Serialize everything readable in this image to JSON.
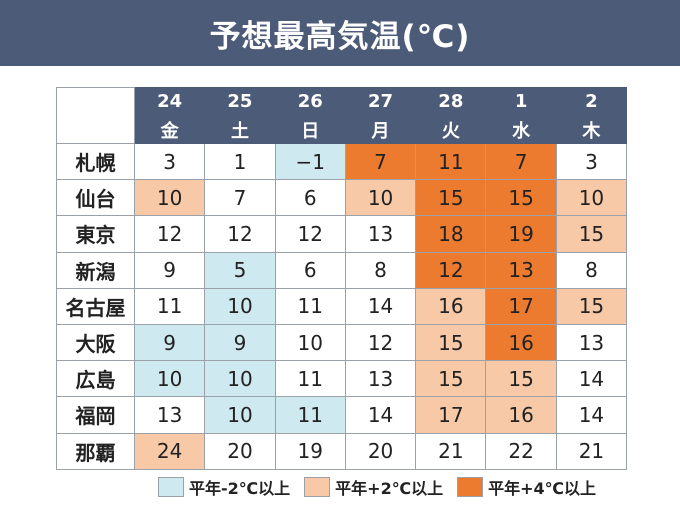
{
  "title": "予想最高気温(℃)",
  "days": [
    {
      "date": "24",
      "weekday": "金"
    },
    {
      "date": "25",
      "weekday": "土"
    },
    {
      "date": "26",
      "weekday": "日"
    },
    {
      "date": "27",
      "weekday": "月"
    },
    {
      "date": "28",
      "weekday": "火"
    },
    {
      "date": "1",
      "weekday": "水"
    },
    {
      "date": "2",
      "weekday": "木"
    }
  ],
  "rows": [
    {
      "city": "札幌",
      "values": [
        "3",
        "1",
        "−1",
        "7",
        "11",
        "7",
        "3"
      ],
      "levels": [
        "none",
        "none",
        "cold",
        "warm4",
        "warm4",
        "warm4",
        "none"
      ]
    },
    {
      "city": "仙台",
      "values": [
        "10",
        "7",
        "6",
        "10",
        "15",
        "15",
        "10"
      ],
      "levels": [
        "warm2",
        "none",
        "none",
        "warm2",
        "warm4",
        "warm4",
        "warm2"
      ]
    },
    {
      "city": "東京",
      "values": [
        "12",
        "12",
        "12",
        "13",
        "18",
        "19",
        "15"
      ],
      "levels": [
        "none",
        "none",
        "none",
        "none",
        "warm4",
        "warm4",
        "warm2"
      ]
    },
    {
      "city": "新潟",
      "values": [
        "9",
        "5",
        "6",
        "8",
        "12",
        "13",
        "8"
      ],
      "levels": [
        "none",
        "cold",
        "none",
        "none",
        "warm4",
        "warm4",
        "none"
      ]
    },
    {
      "city": "名古屋",
      "values": [
        "11",
        "10",
        "11",
        "14",
        "16",
        "17",
        "15"
      ],
      "levels": [
        "none",
        "cold",
        "none",
        "none",
        "warm2",
        "warm4",
        "warm2"
      ]
    },
    {
      "city": "大阪",
      "values": [
        "9",
        "9",
        "10",
        "12",
        "15",
        "16",
        "13"
      ],
      "levels": [
        "cold",
        "cold",
        "none",
        "none",
        "warm2",
        "warm4",
        "none"
      ]
    },
    {
      "city": "広島",
      "values": [
        "10",
        "10",
        "11",
        "13",
        "15",
        "15",
        "14"
      ],
      "levels": [
        "cold",
        "cold",
        "none",
        "none",
        "warm2",
        "warm2",
        "none"
      ]
    },
    {
      "city": "福岡",
      "values": [
        "13",
        "10",
        "11",
        "14",
        "17",
        "16",
        "14"
      ],
      "levels": [
        "none",
        "cold",
        "cold",
        "none",
        "warm2",
        "warm2",
        "none"
      ]
    },
    {
      "city": "那覇",
      "values": [
        "24",
        "20",
        "19",
        "20",
        "21",
        "22",
        "21"
      ],
      "levels": [
        "warm2",
        "none",
        "none",
        "none",
        "none",
        "none",
        "none"
      ]
    }
  ],
  "legend": [
    {
      "label": "平年-2℃以上",
      "level": "cold",
      "color": "#cfe9f0"
    },
    {
      "label": "平年+2℃以上",
      "level": "warm2",
      "color": "#f8c9a7"
    },
    {
      "label": "平年+4℃以上",
      "level": "warm4",
      "color": "#ec7b30"
    }
  ]
}
